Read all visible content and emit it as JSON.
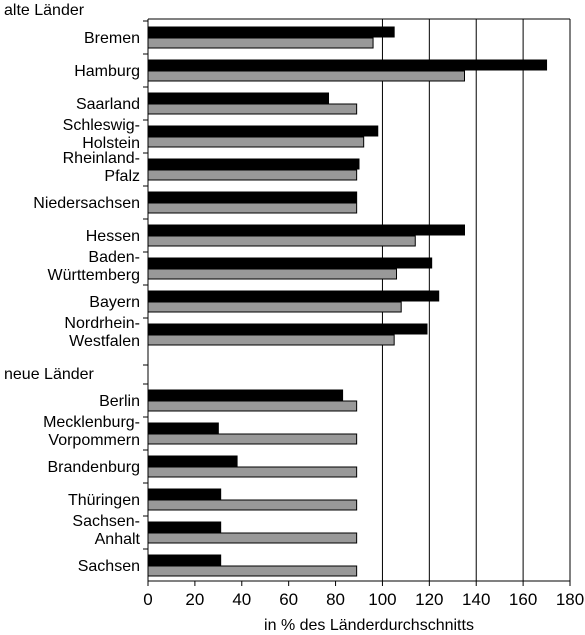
{
  "chart_data": {
    "type": "bar",
    "orientation": "horizontal",
    "xlabel": "in % des Länderdurchschnitts",
    "xlim": [
      0,
      180
    ],
    "xticks": [
      0,
      20,
      40,
      60,
      80,
      100,
      120,
      140,
      160,
      180
    ],
    "grid": "vertical lines at 100, 120, 140, 160",
    "series_colors": [
      "#000000",
      "#999999"
    ],
    "groups": [
      {
        "label": "alte Länder",
        "categories": [
          {
            "label": [
              "Bremen"
            ],
            "values": [
              105,
              96
            ]
          },
          {
            "label": [
              "Hamburg"
            ],
            "values": [
              170,
              135
            ]
          },
          {
            "label": [
              "Saarland"
            ],
            "values": [
              77,
              89
            ]
          },
          {
            "label": [
              "Schleswig-",
              "Holstein"
            ],
            "values": [
              98,
              92
            ]
          },
          {
            "label": [
              "Rheinland-",
              "Pfalz"
            ],
            "values": [
              90,
              89
            ]
          },
          {
            "label": [
              "Niedersachsen"
            ],
            "values": [
              89,
              89
            ]
          },
          {
            "label": [
              "Hessen"
            ],
            "values": [
              135,
              114
            ]
          },
          {
            "label": [
              "Baden-",
              "Württemberg"
            ],
            "values": [
              121,
              106
            ]
          },
          {
            "label": [
              "Bayern"
            ],
            "values": [
              124,
              108
            ]
          },
          {
            "label": [
              "Nordrhein-",
              "Westfalen"
            ],
            "values": [
              119,
              105
            ]
          }
        ]
      },
      {
        "label": "neue Länder",
        "categories": [
          {
            "label": [
              "Berlin"
            ],
            "values": [
              83,
              89
            ]
          },
          {
            "label": [
              "Mecklenburg-",
              "Vorpommern"
            ],
            "values": [
              30,
              89
            ]
          },
          {
            "label": [
              "Brandenburg"
            ],
            "values": [
              38,
              89
            ]
          },
          {
            "label": [
              "Thüringen"
            ],
            "values": [
              31,
              89
            ]
          },
          {
            "label": [
              "Sachsen-",
              "Anhalt"
            ],
            "values": [
              31,
              89
            ]
          },
          {
            "label": [
              "Sachsen"
            ],
            "values": [
              31,
              89
            ]
          }
        ]
      }
    ]
  }
}
